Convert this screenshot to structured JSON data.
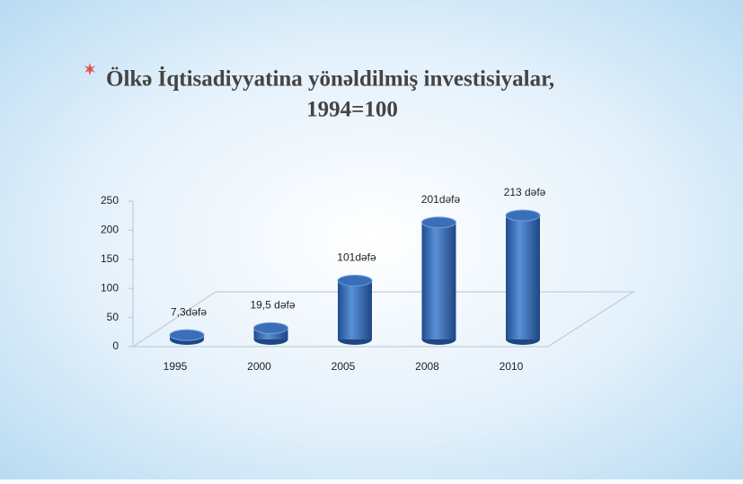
{
  "chart_data": {
    "type": "bar",
    "title": "Ölkə İqtisadiyyatina yönəldilmiş investisiyalar,",
    "subtitle": "1994=100",
    "categories": [
      "1995",
      "2000",
      "2005",
      "2008",
      "2010"
    ],
    "values": [
      7.3,
      19.5,
      101,
      201,
      213
    ],
    "value_labels": [
      "7,3dəfə",
      "19,5 dəfə",
      "101dəfə",
      "201dəfə",
      "213 dəfə"
    ],
    "color": "#3a6fb8",
    "ylim": [
      0,
      250
    ],
    "yticks": [
      0,
      50,
      100,
      150,
      200,
      250
    ]
  }
}
